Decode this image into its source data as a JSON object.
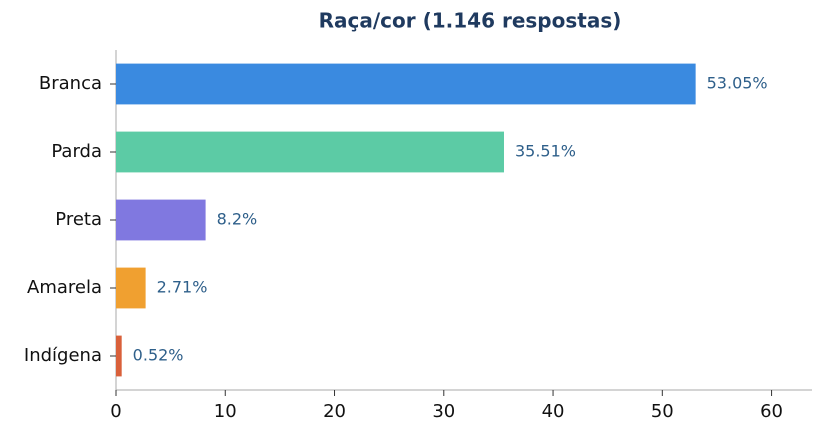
{
  "chart_data": {
    "type": "barh",
    "title": "Raça/cor (1.146 respostas)",
    "categories": [
      "Branca",
      "Parda",
      "Preta",
      "Amarela",
      "Indígena"
    ],
    "values": [
      53.05,
      35.51,
      8.2,
      2.71,
      0.52
    ],
    "value_labels": [
      "53.05%",
      "35.51%",
      "8.2%",
      "2.71%",
      "0.52%"
    ],
    "colors": [
      "#3a8ae0",
      "#5ccba5",
      "#8078e0",
      "#f0a030",
      "#d9603a"
    ],
    "xlim": [
      0,
      63.7
    ],
    "xticks": [
      0,
      10,
      20,
      30,
      40,
      50,
      60
    ],
    "grid": false
  }
}
